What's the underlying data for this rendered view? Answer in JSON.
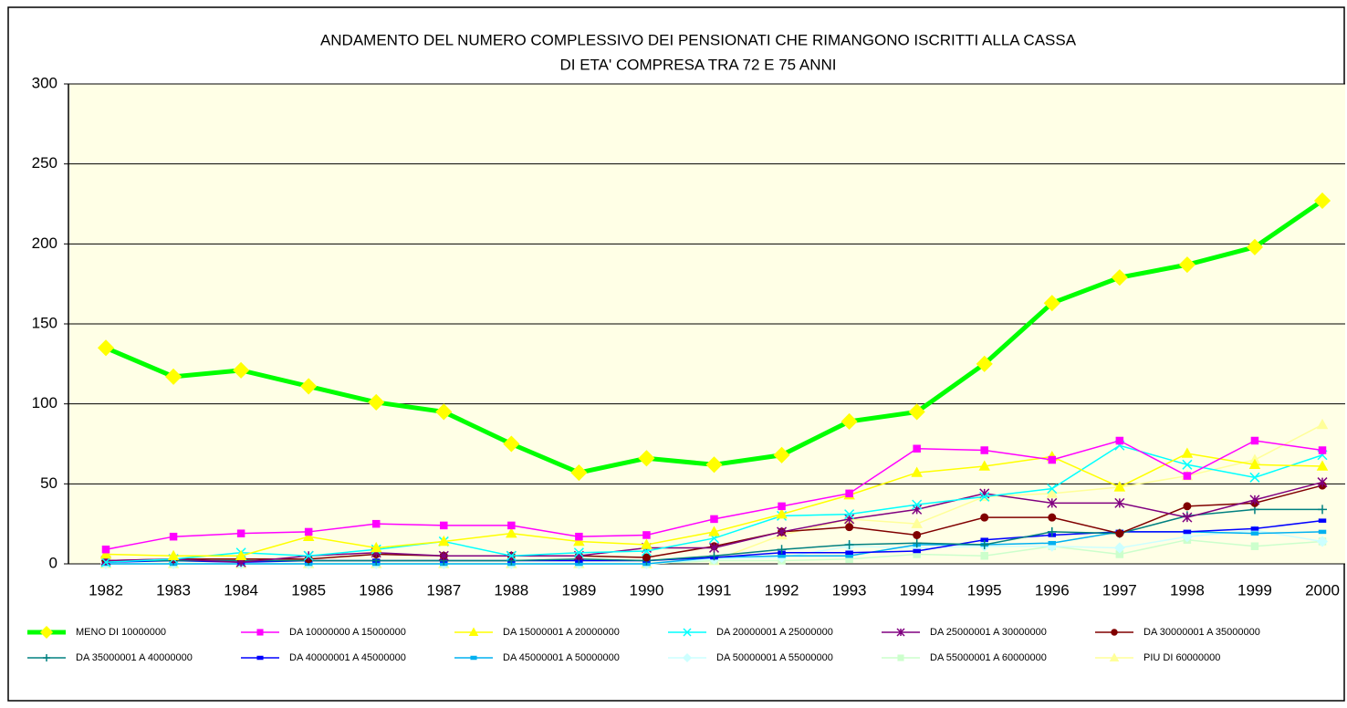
{
  "chart_data": {
    "type": "line",
    "title": [
      "ANDAMENTO DEL NUMERO COMPLESSIVO DEI PENSIONATI CHE RIMANGONO ISCRITTI ALLA CASSA",
      "DI ETA' COMPRESA TRA 72 E 75 ANNI"
    ],
    "categories": [
      "1982",
      "1983",
      "1984",
      "1985",
      "1986",
      "1987",
      "1988",
      "1989",
      "1990",
      "1991",
      "1992",
      "1993",
      "1994",
      "1995",
      "1996",
      "1997",
      "1998",
      "1999",
      "2000"
    ],
    "ylim": [
      0,
      300
    ],
    "yticks": [
      0,
      50,
      100,
      150,
      200,
      250,
      300
    ],
    "grid": true,
    "legend": "bottom",
    "series": [
      {
        "name": "MENO DI 10000000",
        "color": "#00ff00",
        "marker": "diamond",
        "marker_color": "#ffff00",
        "line_width": 5,
        "values": [
          135,
          117,
          121,
          111,
          101,
          95,
          75,
          57,
          66,
          62,
          68,
          89,
          95,
          125,
          163,
          179,
          187,
          198,
          227
        ]
      },
      {
        "name": "DA 10000000 A 15000000",
        "color": "#ff00ff",
        "marker": "square",
        "values": [
          9,
          17,
          19,
          20,
          25,
          24,
          24,
          17,
          18,
          28,
          36,
          44,
          72,
          71,
          65,
          77,
          55,
          77,
          71
        ]
      },
      {
        "name": "DA 15000001 A 20000000",
        "color": "#ffff00",
        "marker": "triangle",
        "values": [
          6,
          5,
          5,
          17,
          10,
          14,
          19,
          14,
          12,
          20,
          31,
          43,
          57,
          61,
          67,
          48,
          69,
          62,
          61
        ]
      },
      {
        "name": "DA 20000001 A 25000000",
        "color": "#00ffff",
        "marker": "x",
        "values": [
          1,
          3,
          7,
          5,
          9,
          14,
          5,
          7,
          8,
          16,
          30,
          31,
          37,
          42,
          47,
          74,
          62,
          54,
          68
        ]
      },
      {
        "name": "DA 25000001 A 30000000",
        "color": "#800080",
        "marker": "star",
        "values": [
          2,
          3,
          1,
          5,
          7,
          5,
          5,
          5,
          10,
          10,
          20,
          28,
          34,
          44,
          38,
          38,
          29,
          40,
          51
        ]
      },
      {
        "name": "DA 30000001 A 35000000",
        "color": "#800000",
        "marker": "circle",
        "values": [
          2,
          3,
          3,
          3,
          6,
          5,
          5,
          5,
          4,
          11,
          20,
          23,
          18,
          29,
          29,
          19,
          36,
          38,
          49
        ]
      },
      {
        "name": "DA 35000001 A 40000000",
        "color": "#008080",
        "marker": "plus",
        "values": [
          2,
          2,
          2,
          2,
          2,
          2,
          2,
          3,
          2,
          5,
          9,
          12,
          13,
          12,
          20,
          19,
          30,
          34,
          34
        ]
      },
      {
        "name": "DA 40000001 A 45000000",
        "color": "#0000ff",
        "marker": "dash",
        "values": [
          1,
          2,
          1,
          2,
          2,
          2,
          2,
          2,
          2,
          4,
          7,
          7,
          8,
          15,
          18,
          20,
          20,
          22,
          27
        ]
      },
      {
        "name": "DA 45000001 A 50000000",
        "color": "#00b0f0",
        "marker": "dash",
        "values": [
          0,
          0,
          0,
          0,
          0,
          0,
          0,
          0,
          0,
          4,
          5,
          5,
          12,
          12,
          13,
          20,
          20,
          19,
          20
        ]
      },
      {
        "name": "DA 50000001 A 55000000",
        "color": "#ccffff",
        "marker": "diamond",
        "values": [
          0,
          0,
          0,
          0,
          0,
          0,
          0,
          0,
          0,
          3,
          4,
          11,
          10,
          11,
          11,
          10,
          17,
          21,
          14
        ]
      },
      {
        "name": "DA 55000001 A 60000000",
        "color": "#ccffcc",
        "marker": "square",
        "values": [
          0,
          0,
          0,
          0,
          0,
          0,
          0,
          0,
          0,
          2,
          2,
          3,
          6,
          5,
          11,
          6,
          15,
          11,
          14
        ]
      },
      {
        "name": "PIU DI 60000000",
        "color": "#ffff99",
        "marker": "triangle",
        "values": [
          0,
          0,
          0,
          0,
          0,
          0,
          0,
          0,
          0,
          2,
          18,
          28,
          25,
          42,
          44,
          48,
          55,
          65,
          87
        ]
      }
    ]
  }
}
